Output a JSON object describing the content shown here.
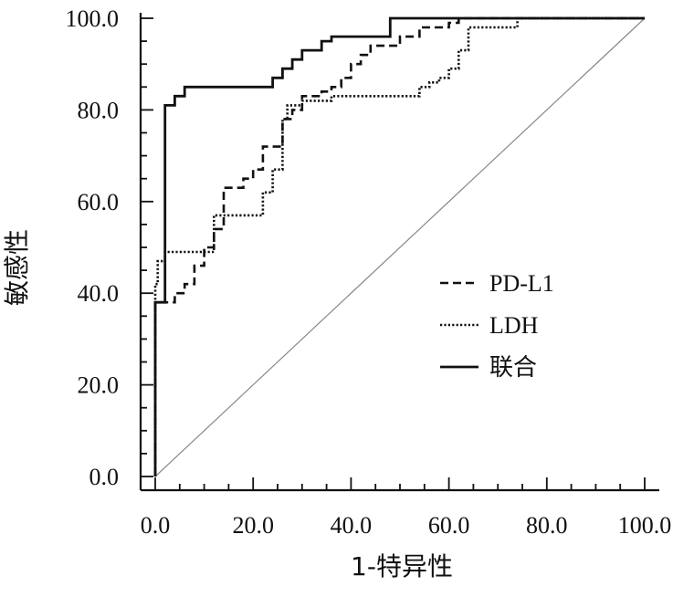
{
  "chart_data": {
    "type": "line",
    "title": "",
    "xlabel": "1-特异性",
    "ylabel": "敏感性",
    "xlim": [
      0,
      100
    ],
    "ylim": [
      0,
      100
    ],
    "xticks": [
      "0.0",
      "20.0",
      "40.0",
      "60.0",
      "80.0",
      "100.0"
    ],
    "yticks": [
      "0.0",
      "20.0",
      "40.0",
      "60.0",
      "80.0",
      "100.0"
    ],
    "legend_position": "center-right",
    "reference_line": {
      "from": [
        0,
        0
      ],
      "to": [
        100,
        100
      ],
      "color": "#888888"
    },
    "series": [
      {
        "name": "PD-L1",
        "style": "dashed",
        "x": [
          0,
          0,
          1,
          1,
          4,
          4,
          6,
          6,
          8,
          8,
          10,
          10,
          12,
          12,
          14,
          14,
          18,
          18,
          20,
          20,
          22,
          22,
          26,
          26,
          28,
          28,
          30,
          30,
          34,
          34,
          36,
          36,
          38,
          38,
          40,
          40,
          42,
          42,
          44,
          44,
          50,
          50,
          54,
          54,
          60,
          60,
          62,
          62,
          100
        ],
        "y": [
          0,
          38,
          38,
          38,
          38,
          40,
          40,
          42,
          42,
          46,
          46,
          50,
          50,
          54,
          54,
          63,
          63,
          65,
          65,
          67,
          67,
          72,
          72,
          78,
          78,
          80,
          80,
          83,
          83,
          84,
          84,
          85,
          85,
          87,
          87,
          90,
          90,
          92,
          92,
          94,
          94,
          96,
          96,
          98,
          98,
          99,
          99,
          100,
          100
        ]
      },
      {
        "name": "LDH",
        "style": "dotted",
        "x": [
          0,
          0,
          0.5,
          0.5,
          2,
          2,
          12,
          12,
          22,
          22,
          24,
          24,
          26,
          26,
          27,
          27,
          30,
          30,
          36,
          36,
          54,
          54,
          56,
          56,
          58,
          58,
          60,
          60,
          62,
          62,
          64,
          64,
          74,
          74,
          100
        ],
        "y": [
          0,
          42,
          42,
          47,
          47,
          49,
          49,
          57,
          57,
          62,
          62,
          67,
          67,
          78,
          78,
          81,
          81,
          82,
          82,
          83,
          83,
          85,
          85,
          86,
          86,
          87,
          87,
          89,
          89,
          93,
          93,
          98,
          98,
          100,
          100
        ]
      },
      {
        "name": "联合",
        "style": "solid",
        "x": [
          0,
          0,
          2,
          2,
          4,
          4,
          6,
          6,
          24,
          24,
          26,
          26,
          28,
          28,
          30,
          30,
          34,
          34,
          36,
          36,
          48,
          48,
          100
        ],
        "y": [
          0,
          38,
          38,
          81,
          81,
          83,
          83,
          85,
          85,
          87,
          87,
          89,
          89,
          91,
          91,
          93,
          93,
          95,
          95,
          96,
          96,
          100,
          100
        ]
      }
    ]
  }
}
